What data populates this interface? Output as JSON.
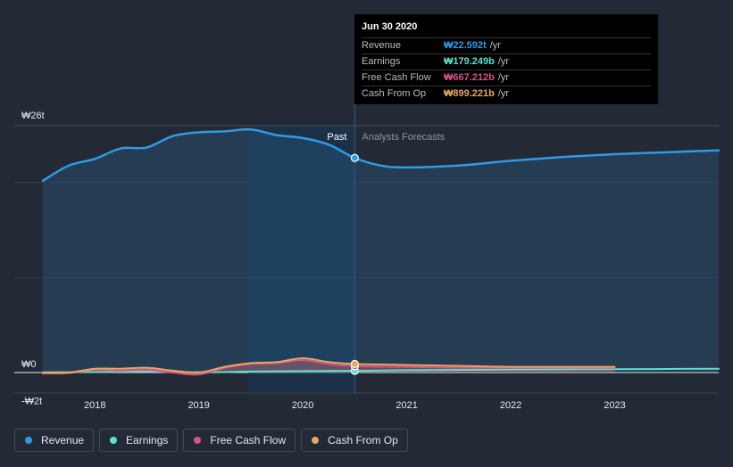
{
  "chart_data": {
    "type": "area",
    "y_tick_labels": [
      "₩26t",
      "₩0",
      "-₩2t"
    ],
    "ylim": [
      -2,
      26
    ],
    "x_tick_labels": [
      "2018",
      "2019",
      "2020",
      "2021",
      "2022",
      "2023"
    ],
    "xlim": [
      2017.5,
      2024.0
    ],
    "past_label": "Past",
    "forecast_label": "Analysts Forecasts",
    "divider_x": 2020.5,
    "series": [
      {
        "name": "Revenue",
        "color": "#2f9be6",
        "unit": "trillion KRW",
        "x": [
          2017.5,
          2017.75,
          2018.0,
          2018.25,
          2018.5,
          2018.75,
          2019.0,
          2019.25,
          2019.5,
          2019.75,
          2020.0,
          2020.25,
          2020.5,
          2020.75,
          2021.0,
          2021.5,
          2022.0,
          2022.5,
          2023.0,
          2023.5,
          2024.0
        ],
        "values": [
          20.2,
          21.8,
          22.5,
          23.6,
          23.7,
          24.9,
          25.3,
          25.4,
          25.6,
          25.0,
          24.7,
          24.0,
          22.6,
          21.8,
          21.6,
          21.8,
          22.3,
          22.7,
          23.0,
          23.2,
          23.4
        ]
      },
      {
        "name": "Earnings",
        "color": "#5fdfd0",
        "unit": "trillion KRW",
        "x": [
          2017.5,
          2018.0,
          2018.5,
          2019.0,
          2019.5,
          2020.0,
          2020.5,
          2021.0,
          2022.0,
          2023.0,
          2024.0
        ],
        "values": [
          0.02,
          0.05,
          0.1,
          0.02,
          0.1,
          0.15,
          0.18,
          0.25,
          0.3,
          0.35,
          0.4
        ]
      },
      {
        "name": "Free Cash Flow",
        "color": "#d8528b",
        "unit": "trillion KRW",
        "x": [
          2017.5,
          2017.75,
          2018.0,
          2018.25,
          2018.5,
          2018.75,
          2019.0,
          2019.25,
          2019.5,
          2019.75,
          2020.0,
          2020.25,
          2020.5,
          2021.0,
          2021.5,
          2022.0,
          2023.0
        ],
        "values": [
          -0.1,
          -0.05,
          0.3,
          0.2,
          0.3,
          0.0,
          -0.2,
          0.5,
          0.9,
          1.0,
          1.3,
          0.9,
          0.67,
          0.6,
          0.5,
          0.5,
          0.5
        ]
      },
      {
        "name": "Cash From Op",
        "color": "#e8a75a",
        "unit": "trillion KRW",
        "x": [
          2017.5,
          2017.75,
          2018.0,
          2018.25,
          2018.5,
          2018.75,
          2019.0,
          2019.25,
          2019.5,
          2019.75,
          2020.0,
          2020.25,
          2020.5,
          2021.0,
          2021.5,
          2022.0,
          2023.0
        ],
        "values": [
          0.0,
          0.0,
          0.4,
          0.4,
          0.5,
          0.2,
          0.0,
          0.6,
          1.0,
          1.1,
          1.5,
          1.1,
          0.9,
          0.8,
          0.7,
          0.6,
          0.6
        ]
      }
    ]
  },
  "tooltip": {
    "date": "Jun 30 2020",
    "rows": [
      {
        "label": "Revenue",
        "value": "₩22.592t",
        "unit": "/yr",
        "color": "#2f9be6"
      },
      {
        "label": "Earnings",
        "value": "₩179.249b",
        "unit": "/yr",
        "color": "#5fdfd0"
      },
      {
        "label": "Free Cash Flow",
        "value": "₩667.212b",
        "unit": "/yr",
        "color": "#d8528b"
      },
      {
        "label": "Cash From Op",
        "value": "₩899.221b",
        "unit": "/yr",
        "color": "#e8a75a"
      }
    ]
  },
  "legend": [
    {
      "label": "Revenue",
      "color": "#2f9be6"
    },
    {
      "label": "Earnings",
      "color": "#5fdfd0"
    },
    {
      "label": "Free Cash Flow",
      "color": "#d8528b"
    },
    {
      "label": "Cash From Op",
      "color": "#e8a75a"
    }
  ]
}
